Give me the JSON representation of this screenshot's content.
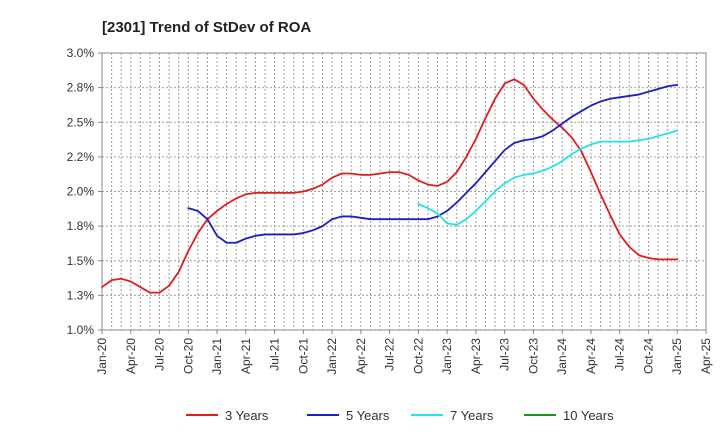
{
  "chart_data": {
    "type": "line",
    "title": "[2301]  Trend of StDev of ROA",
    "xlabel": "",
    "ylabel": "",
    "x_ticks": [
      "Jan-20",
      "Apr-20",
      "Jul-20",
      "Oct-20",
      "Jan-21",
      "Apr-21",
      "Jul-21",
      "Oct-21",
      "Jan-22",
      "Apr-22",
      "Jul-22",
      "Oct-22",
      "Jan-23",
      "Apr-23",
      "Jul-23",
      "Oct-23",
      "Jan-24",
      "Apr-24",
      "Jul-24",
      "Oct-24",
      "Jan-25",
      "Apr-25"
    ],
    "y_ticks": [
      "1.0%",
      "1.3%",
      "1.5%",
      "1.8%",
      "2.0%",
      "2.2%",
      "2.5%",
      "2.8%",
      "3.0%"
    ],
    "ylim": [
      1.0,
      3.0
    ],
    "grid": true,
    "legend_position": "bottom",
    "series": [
      {
        "name": "3 Years",
        "color": "#dd1f1f",
        "values": [
          [
            "2020-01",
            1.31
          ],
          [
            "2020-02",
            1.36
          ],
          [
            "2020-03",
            1.37
          ],
          [
            "2020-04",
            1.35
          ],
          [
            "2020-05",
            1.31
          ],
          [
            "2020-06",
            1.27
          ],
          [
            "2020-07",
            1.27
          ],
          [
            "2020-08",
            1.32
          ],
          [
            "2020-09",
            1.42
          ],
          [
            "2020-10",
            1.57
          ],
          [
            "2020-11",
            1.7
          ],
          [
            "2020-12",
            1.8
          ],
          [
            "2021-01",
            1.86
          ],
          [
            "2021-02",
            1.91
          ],
          [
            "2021-03",
            1.95
          ],
          [
            "2021-04",
            1.98
          ],
          [
            "2021-05",
            1.99
          ],
          [
            "2021-06",
            1.99
          ],
          [
            "2021-07",
            1.99
          ],
          [
            "2021-08",
            1.99
          ],
          [
            "2021-09",
            1.99
          ],
          [
            "2021-10",
            2.0
          ],
          [
            "2021-11",
            2.02
          ],
          [
            "2021-12",
            2.05
          ],
          [
            "2022-01",
            2.1
          ],
          [
            "2022-02",
            2.13
          ],
          [
            "2022-03",
            2.13
          ],
          [
            "2022-04",
            2.12
          ],
          [
            "2022-05",
            2.12
          ],
          [
            "2022-06",
            2.13
          ],
          [
            "2022-07",
            2.14
          ],
          [
            "2022-08",
            2.14
          ],
          [
            "2022-09",
            2.12
          ],
          [
            "2022-10",
            2.08
          ],
          [
            "2022-11",
            2.05
          ],
          [
            "2022-12",
            2.04
          ],
          [
            "2023-01",
            2.07
          ],
          [
            "2023-02",
            2.14
          ],
          [
            "2023-03",
            2.25
          ],
          [
            "2023-04",
            2.38
          ],
          [
            "2023-05",
            2.53
          ],
          [
            "2023-06",
            2.67
          ],
          [
            "2023-07",
            2.78
          ],
          [
            "2023-08",
            2.81
          ],
          [
            "2023-09",
            2.77
          ],
          [
            "2023-10",
            2.67
          ],
          [
            "2023-11",
            2.59
          ],
          [
            "2023-12",
            2.52
          ],
          [
            "2024-01",
            2.46
          ],
          [
            "2024-02",
            2.39
          ],
          [
            "2024-03",
            2.29
          ],
          [
            "2024-04",
            2.14
          ],
          [
            "2024-05",
            1.98
          ],
          [
            "2024-06",
            1.83
          ],
          [
            "2024-07",
            1.69
          ],
          [
            "2024-08",
            1.6
          ],
          [
            "2024-09",
            1.54
          ],
          [
            "2024-10",
            1.52
          ],
          [
            "2024-11",
            1.51
          ],
          [
            "2024-12",
            1.51
          ],
          [
            "2025-01",
            1.51
          ]
        ]
      },
      {
        "name": "5 Years",
        "color": "#1f1fbf",
        "values": [
          [
            "2020-10",
            1.88
          ],
          [
            "2020-11",
            1.86
          ],
          [
            "2020-12",
            1.8
          ],
          [
            "2021-01",
            1.68
          ],
          [
            "2021-02",
            1.63
          ],
          [
            "2021-03",
            1.63
          ],
          [
            "2021-04",
            1.66
          ],
          [
            "2021-05",
            1.68
          ],
          [
            "2021-06",
            1.69
          ],
          [
            "2021-07",
            1.69
          ],
          [
            "2021-08",
            1.69
          ],
          [
            "2021-09",
            1.69
          ],
          [
            "2021-10",
            1.7
          ],
          [
            "2021-11",
            1.72
          ],
          [
            "2021-12",
            1.75
          ],
          [
            "2022-01",
            1.8
          ],
          [
            "2022-02",
            1.82
          ],
          [
            "2022-03",
            1.82
          ],
          [
            "2022-04",
            1.81
          ],
          [
            "2022-05",
            1.8
          ],
          [
            "2022-06",
            1.8
          ],
          [
            "2022-07",
            1.8
          ],
          [
            "2022-08",
            1.8
          ],
          [
            "2022-09",
            1.8
          ],
          [
            "2022-10",
            1.8
          ],
          [
            "2022-11",
            1.8
          ],
          [
            "2022-12",
            1.82
          ],
          [
            "2023-01",
            1.86
          ],
          [
            "2023-02",
            1.92
          ],
          [
            "2023-03",
            1.99
          ],
          [
            "2023-04",
            2.06
          ],
          [
            "2023-05",
            2.14
          ],
          [
            "2023-06",
            2.22
          ],
          [
            "2023-07",
            2.3
          ],
          [
            "2023-08",
            2.35
          ],
          [
            "2023-09",
            2.37
          ],
          [
            "2023-10",
            2.38
          ],
          [
            "2023-11",
            2.4
          ],
          [
            "2023-12",
            2.44
          ],
          [
            "2024-01",
            2.49
          ],
          [
            "2024-02",
            2.54
          ],
          [
            "2024-03",
            2.58
          ],
          [
            "2024-04",
            2.62
          ],
          [
            "2024-05",
            2.65
          ],
          [
            "2024-06",
            2.67
          ],
          [
            "2024-07",
            2.68
          ],
          [
            "2024-08",
            2.69
          ],
          [
            "2024-09",
            2.7
          ],
          [
            "2024-10",
            2.72
          ],
          [
            "2024-11",
            2.74
          ],
          [
            "2024-12",
            2.76
          ],
          [
            "2025-01",
            2.77
          ]
        ]
      },
      {
        "name": "7 Years",
        "color": "#22e5e5",
        "values": [
          [
            "2022-10",
            1.91
          ],
          [
            "2022-11",
            1.88
          ],
          [
            "2022-12",
            1.84
          ],
          [
            "2023-01",
            1.77
          ],
          [
            "2023-02",
            1.76
          ],
          [
            "2023-03",
            1.8
          ],
          [
            "2023-04",
            1.86
          ],
          [
            "2023-05",
            1.93
          ],
          [
            "2023-06",
            2.0
          ],
          [
            "2023-07",
            2.06
          ],
          [
            "2023-08",
            2.1
          ],
          [
            "2023-09",
            2.12
          ],
          [
            "2023-10",
            2.13
          ],
          [
            "2023-11",
            2.15
          ],
          [
            "2023-12",
            2.18
          ],
          [
            "2024-01",
            2.22
          ],
          [
            "2024-02",
            2.27
          ],
          [
            "2024-03",
            2.31
          ],
          [
            "2024-04",
            2.34
          ],
          [
            "2024-05",
            2.36
          ],
          [
            "2024-06",
            2.36
          ],
          [
            "2024-07",
            2.36
          ],
          [
            "2024-08",
            2.36
          ],
          [
            "2024-09",
            2.37
          ],
          [
            "2024-10",
            2.38
          ],
          [
            "2024-11",
            2.4
          ],
          [
            "2024-12",
            2.42
          ],
          [
            "2025-01",
            2.44
          ]
        ]
      },
      {
        "name": "10 Years",
        "color": "#1f8f1f",
        "values": []
      }
    ]
  }
}
